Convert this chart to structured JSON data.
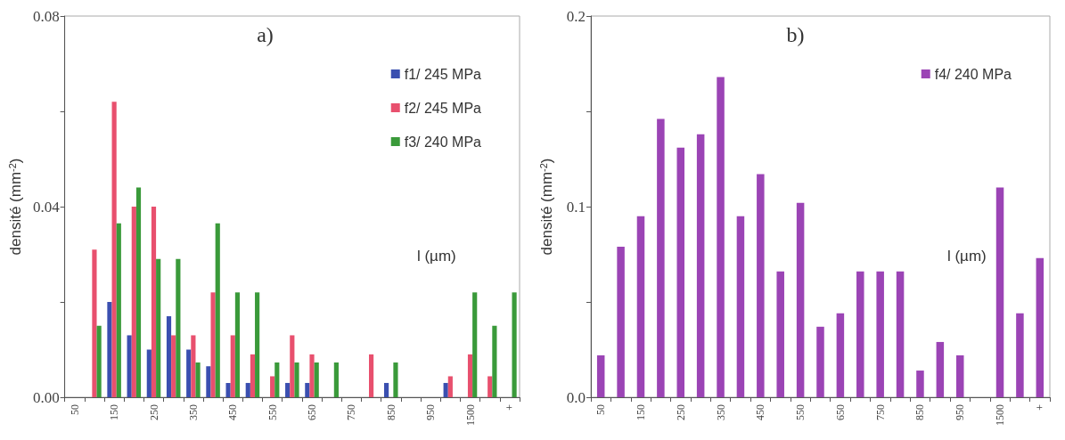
{
  "chart_data": [
    {
      "type": "bar",
      "title": "a)",
      "xlabel": "l (µm)",
      "ylabel": "densité (mm$^{-2}$)",
      "categories": [
        "50",
        null,
        "150",
        null,
        "250",
        null,
        "350",
        null,
        "450",
        null,
        "550",
        null,
        "650",
        null,
        "750",
        null,
        "850",
        null,
        "950",
        null,
        "1500",
        null,
        "+"
      ],
      "series": [
        {
          "name": "f1/ 245 MPa",
          "color": "#3a4fb0",
          "values": [
            null,
            null,
            0.02,
            0.013,
            0.01,
            0.017,
            0.01,
            0.0065,
            0.003,
            0.003,
            null,
            0.003,
            0.003,
            null,
            null,
            null,
            0.003,
            null,
            null,
            0.003,
            null,
            null,
            null
          ]
        },
        {
          "name": "f2/ 245 MPa",
          "color": "#e8506e",
          "values": [
            null,
            0.031,
            0.062,
            0.04,
            0.04,
            0.013,
            0.013,
            0.022,
            0.013,
            0.009,
            0.0044,
            0.013,
            0.009,
            null,
            null,
            0.009,
            null,
            null,
            null,
            0.0044,
            0.009,
            0.0044,
            null
          ]
        },
        {
          "name": "f3/ 240 MPa",
          "color": "#3a9a3a",
          "values": [
            null,
            0.015,
            0.0365,
            0.044,
            0.029,
            0.029,
            0.0073,
            0.0365,
            0.022,
            0.022,
            0.0073,
            0.0073,
            0.0073,
            0.0073,
            null,
            null,
            0.0073,
            null,
            null,
            null,
            0.022,
            0.015,
            0.022
          ]
        }
      ],
      "ylim": [
        0,
        0.08
      ],
      "yticks": [
        {
          "value": 0,
          "label": "0.00"
        },
        {
          "value": 0.02,
          "label": null
        },
        {
          "value": 0.04,
          "label": "0.04"
        },
        {
          "value": 0.06,
          "label": null
        },
        {
          "value": 0.08,
          "label": "0.08"
        }
      ],
      "grid": false,
      "legend": "top right"
    },
    {
      "type": "bar",
      "title": "b)",
      "xlabel": "l (µm)",
      "ylabel": "densité (mm$^{-2}$)",
      "categories": [
        "50",
        null,
        "150",
        null,
        "250",
        null,
        "350",
        null,
        "450",
        null,
        "550",
        null,
        "650",
        null,
        "750",
        null,
        "850",
        null,
        "950",
        null,
        "1500",
        null,
        "+"
      ],
      "series": [
        {
          "name": "f4/ 240 MPa",
          "color": "#9b44b5",
          "values": [
            0.022,
            0.079,
            0.095,
            0.146,
            0.131,
            0.138,
            0.168,
            0.095,
            0.117,
            0.066,
            0.102,
            0.037,
            0.044,
            0.066,
            0.066,
            0.066,
            0.014,
            0.029,
            0.022,
            null,
            0.11,
            0.044,
            0.073
          ]
        }
      ],
      "ylim": [
        0,
        0.2
      ],
      "yticks": [
        {
          "value": 0,
          "label": "0.0"
        },
        {
          "value": 0.05,
          "label": null
        },
        {
          "value": 0.1,
          "label": "0.1"
        },
        {
          "value": 0.15,
          "label": null
        },
        {
          "value": 0.2,
          "label": "0.2"
        }
      ],
      "grid": false,
      "legend": "top right"
    }
  ]
}
